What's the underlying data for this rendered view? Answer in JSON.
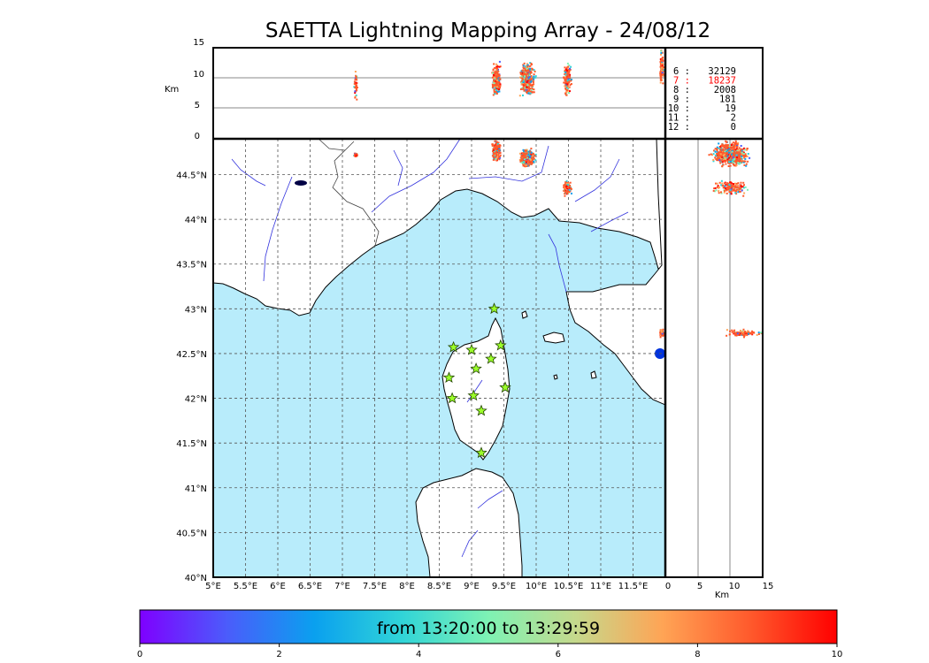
{
  "title": "SAETTA Lightning Mapping Array - 24/08/12",
  "top_panel": {
    "ylabel": "Km",
    "yticks": [
      "15",
      "10",
      "5",
      "0"
    ]
  },
  "station_counts": [
    {
      "stations": "6",
      "count": "32129",
      "highlight": false
    },
    {
      "stations": "7",
      "count": "18237",
      "highlight": true
    },
    {
      "stations": "8",
      "count": "2008",
      "highlight": false
    },
    {
      "stations": "9",
      "count": "181",
      "highlight": false
    },
    {
      "stations": "10",
      "count": "19",
      "highlight": false
    },
    {
      "stations": "11",
      "count": "2",
      "highlight": false
    },
    {
      "stations": "12",
      "count": "0",
      "highlight": false
    }
  ],
  "map": {
    "lon_ticks": [
      "5°E",
      "5.5°E",
      "6°E",
      "6.5°E",
      "7°E",
      "7.5°E",
      "8°E",
      "8.5°E",
      "9°E",
      "9.5°E",
      "10°E",
      "10.5°E",
      "11°E",
      "11.5°E"
    ],
    "lat_ticks": [
      "44.5°N",
      "44°N",
      "43.5°N",
      "43°N",
      "42.5°N",
      "42°N",
      "41.5°N",
      "41°N",
      "40.5°N",
      "40°N"
    ],
    "sea_color": "#b8ecfb",
    "land_color": "#ffffff",
    "river_color": "#3333dd"
  },
  "side_panel": {
    "xlabel": "Km",
    "xticks": [
      "0",
      "5",
      "10",
      "15"
    ]
  },
  "stations": [
    {
      "lon": 9.35,
      "lat": 43.0
    },
    {
      "lon": 8.72,
      "lat": 42.57
    },
    {
      "lon": 9.0,
      "lat": 42.54
    },
    {
      "lon": 9.45,
      "lat": 42.59
    },
    {
      "lon": 9.3,
      "lat": 42.44
    },
    {
      "lon": 9.07,
      "lat": 42.33
    },
    {
      "lon": 8.65,
      "lat": 42.23
    },
    {
      "lon": 9.52,
      "lat": 42.12
    },
    {
      "lon": 8.7,
      "lat": 42.0
    },
    {
      "lon": 9.03,
      "lat": 42.03
    },
    {
      "lon": 9.15,
      "lat": 41.86
    },
    {
      "lon": 9.15,
      "lat": 41.39
    }
  ],
  "lightning_cells": [
    {
      "lon": 7.2,
      "lat": 44.73,
      "alt": 9,
      "n": 40,
      "spread_lon": 0.04,
      "spread_lat": 0.02
    },
    {
      "lon": 9.37,
      "lat": 44.78,
      "alt": 10,
      "n": 260,
      "spread_lon": 0.08,
      "spread_lat": 0.14
    },
    {
      "lon": 9.85,
      "lat": 44.7,
      "alt": 10,
      "n": 400,
      "spread_lon": 0.14,
      "spread_lat": 0.12
    },
    {
      "lon": 10.47,
      "lat": 44.36,
      "alt": 10,
      "n": 160,
      "spread_lon": 0.08,
      "spread_lat": 0.1
    },
    {
      "lon": 11.93,
      "lat": 42.74,
      "alt": 12,
      "n": 90,
      "spread_lon": 0.04,
      "spread_lat": 0.05
    }
  ],
  "colorbar": {
    "label": "from 13:20:00 to 13:29:59",
    "ticks": [
      "0",
      "2",
      "4",
      "6",
      "8",
      "10"
    ],
    "min": 0,
    "max": 10,
    "colors": [
      "#7f00ff",
      "#4b5cfb",
      "#0aa0ef",
      "#30d4d8",
      "#7ef2b4",
      "#c5d98c",
      "#ffa455",
      "#ff5a2c",
      "#ff0000"
    ]
  }
}
